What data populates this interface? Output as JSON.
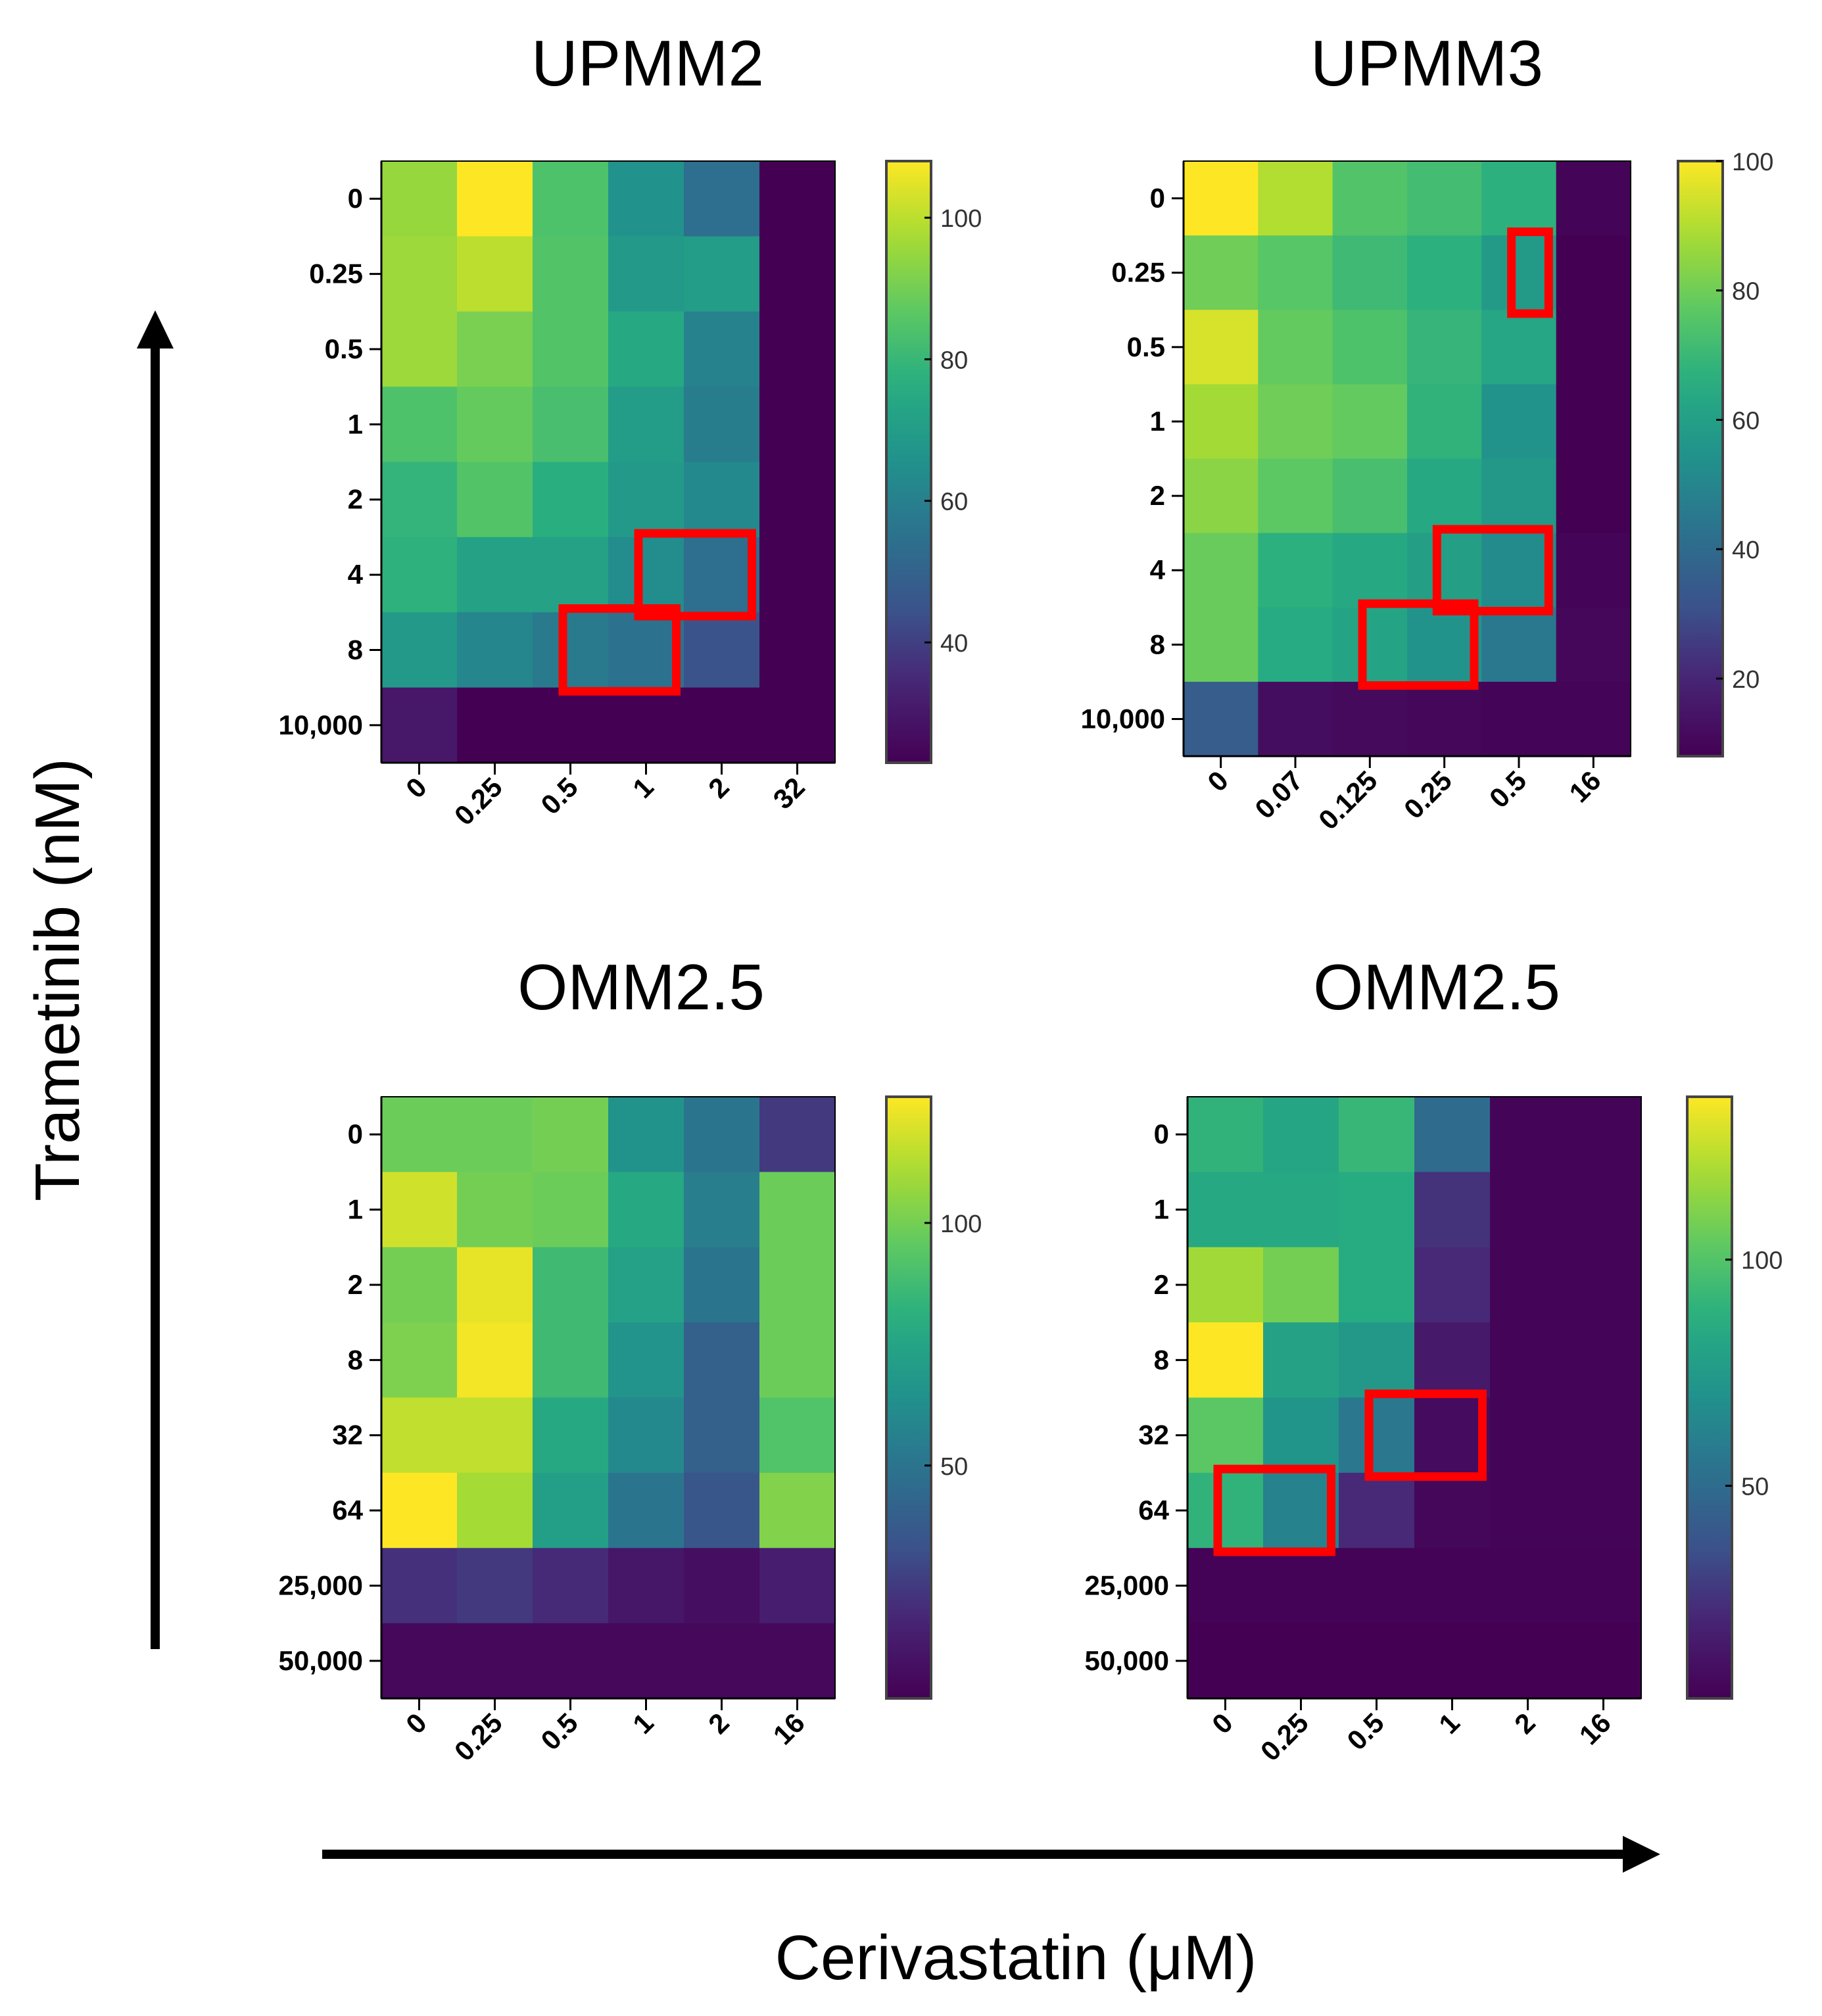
{
  "figure": {
    "ylabel": "Trametinib (nM)",
    "xlabel": "Cerivastatin (μM)"
  },
  "chart_data": [
    {
      "type": "heatmap",
      "title": "UPMM2",
      "xlabel": "Cerivastatin (μM)",
      "ylabel": "Trametinib (nM)",
      "x_categories": [
        "0",
        "0.25",
        "0.5",
        "1",
        "2",
        "32"
      ],
      "y_categories": [
        "0",
        "0.25",
        "0.5",
        "1",
        "2",
        "4",
        "8",
        "10,000"
      ],
      "values": [
        [
          95,
          108,
          84,
          66,
          54,
          6
        ],
        [
          96,
          100,
          85,
          69,
          70,
          6
        ],
        [
          96,
          91,
          85,
          75,
          61,
          6
        ],
        [
          84,
          88,
          83,
          70,
          59,
          6
        ],
        [
          79,
          85,
          77,
          69,
          63,
          6
        ],
        [
          78,
          72,
          72,
          64,
          54,
          6
        ],
        [
          69,
          62,
          58,
          55,
          45,
          6
        ],
        [
          30,
          6,
          6,
          6,
          6,
          6
        ]
      ],
      "colorbar": {
        "min": 23,
        "max": 108,
        "ticks": [
          100,
          80,
          60,
          40
        ]
      },
      "colormap": "viridis",
      "highlights": [
        {
          "rows": [
            "4"
          ],
          "cols": [
            "1",
            "2"
          ]
        },
        {
          "rows": [
            "8"
          ],
          "cols": [
            "0.5",
            "1"
          ]
        }
      ]
    },
    {
      "type": "heatmap",
      "title": "UPMM3",
      "xlabel": "Cerivastatin (μM)",
      "ylabel": "Trametinib (nM)",
      "x_categories": [
        "0",
        "0.07",
        "0.125",
        "0.25",
        "0.5",
        "16"
      ],
      "y_categories": [
        "0",
        "0.25",
        "0.5",
        "1",
        "2",
        "4",
        "8",
        "10,000"
      ],
      "values": [
        [
          100,
          90,
          75,
          72,
          67,
          9
        ],
        [
          80,
          76,
          71,
          67,
          58,
          8
        ],
        [
          95,
          78,
          74,
          69,
          63,
          8
        ],
        [
          88,
          80,
          78,
          68,
          55,
          8
        ],
        [
          84,
          77,
          73,
          64,
          57,
          8
        ],
        [
          79,
          67,
          64,
          60,
          52,
          9
        ],
        [
          79,
          65,
          62,
          55,
          45,
          10
        ],
        [
          35,
          12,
          11,
          10,
          9,
          9
        ]
      ],
      "colorbar": {
        "min": 8,
        "max": 100,
        "ticks": [
          100,
          80,
          60,
          40,
          20
        ]
      },
      "colormap": "viridis",
      "highlights": [
        {
          "rows": [
            "0.25"
          ],
          "cols": [
            "0.5"
          ]
        },
        {
          "rows": [
            "4"
          ],
          "cols": [
            "0.25",
            "0.5"
          ]
        },
        {
          "rows": [
            "8"
          ],
          "cols": [
            "0.125",
            "0.25"
          ]
        }
      ]
    },
    {
      "type": "heatmap",
      "title": "OMM2.5",
      "xlabel": "Cerivastatin (μM)",
      "ylabel": "Trametinib (nM)",
      "x_categories": [
        "0",
        "0.25",
        "0.5",
        "1",
        "2",
        "16"
      ],
      "y_categories": [
        "0",
        "1",
        "2",
        "8",
        "32",
        "64",
        "25,000",
        "50,000"
      ],
      "values": [
        [
          98,
          98,
          100,
          65,
          50,
          25
        ],
        [
          118,
          100,
          98,
          77,
          55,
          98
        ],
        [
          100,
          122,
          87,
          73,
          50,
          98
        ],
        [
          102,
          124,
          87,
          66,
          40,
          98
        ],
        [
          115,
          115,
          78,
          60,
          40,
          92
        ],
        [
          126,
          110,
          72,
          50,
          35,
          103
        ],
        [
          22,
          25,
          20,
          12,
          8,
          15
        ],
        [
          5,
          5,
          5,
          5,
          5,
          5
        ]
      ],
      "colorbar": {
        "min": 2,
        "max": 126,
        "ticks": [
          100,
          50
        ]
      },
      "colormap": "viridis",
      "highlights": []
    },
    {
      "type": "heatmap",
      "title": "OMM2.5",
      "xlabel": "Cerivastatin (μM)",
      "ylabel": "Trametinib (nM)",
      "x_categories": [
        "0",
        "0.25",
        "0.5",
        "1",
        "2",
        "16"
      ],
      "y_categories": [
        "0",
        "1",
        "2",
        "8",
        "32",
        "64",
        "25,000",
        "50,000"
      ],
      "values": [
        [
          90,
          82,
          92,
          50,
          5,
          5
        ],
        [
          84,
          84,
          86,
          25,
          5,
          5
        ],
        [
          118,
          108,
          86,
          22,
          5,
          5
        ],
        [
          136,
          80,
          74,
          15,
          5,
          5
        ],
        [
          102,
          72,
          56,
          8,
          5,
          5
        ],
        [
          90,
          62,
          22,
          6,
          5,
          5
        ],
        [
          4,
          4,
          4,
          4,
          4,
          4
        ],
        [
          3,
          3,
          3,
          3,
          3,
          3
        ]
      ],
      "colorbar": {
        "min": 3,
        "max": 136,
        "ticks": [
          100,
          50
        ]
      },
      "colormap": "viridis",
      "highlights": [
        {
          "rows": [
            "32"
          ],
          "cols": [
            "0.5",
            "1"
          ]
        },
        {
          "rows": [
            "64"
          ],
          "cols": [
            "0",
            "0.25"
          ]
        }
      ]
    }
  ]
}
